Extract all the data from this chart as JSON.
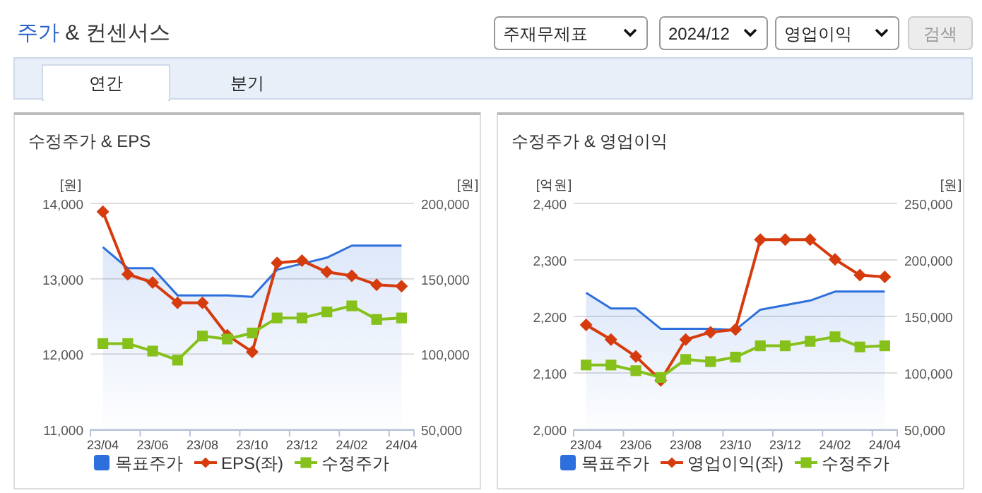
{
  "chart_data": [
    {
      "type": "other",
      "title": "주가 & 컨센서스",
      "annotations": [
        "주재무제표",
        "2024/12",
        "영업이익",
        "검색",
        "연간",
        "분기"
      ]
    },
    {
      "type": "line",
      "title": "수정주가 & EPS",
      "ylabel": "[원]",
      "y2label": "[원]",
      "categories": [
        "23/04",
        null,
        "23/06",
        null,
        "23/08",
        null,
        "23/10",
        null,
        "23/12",
        null,
        "24/02",
        null,
        "24/04"
      ],
      "ylim": [
        11000,
        14000
      ],
      "yticks": [
        {
          "value": 11000,
          "label": "11,000"
        },
        {
          "value": 12000,
          "label": "12,000"
        },
        {
          "value": 13000,
          "label": "13,000"
        },
        {
          "value": 14000,
          "label": "14,000"
        }
      ],
      "y2lim": [
        50000,
        200000
      ],
      "y2ticks": [
        {
          "value": 50000,
          "label": "50,000"
        },
        {
          "value": 100000,
          "label": "100,000"
        },
        {
          "value": 150000,
          "label": "150,000"
        },
        {
          "value": 200000,
          "label": "200,000"
        }
      ],
      "grid": "y",
      "legend": "bottom",
      "series": [
        {
          "name": "목표주가",
          "type": "area",
          "axis": "y2",
          "color": "#2d6fdc",
          "marker": "none",
          "values": [
            171000,
            157000,
            157000,
            139000,
            139000,
            139000,
            138000,
            156000,
            160000,
            164000,
            172000,
            172000,
            172000
          ]
        },
        {
          "name": "EPS(좌)",
          "type": "line",
          "axis": "y",
          "color": "#d63b0e",
          "marker": "diamond",
          "values": [
            13890,
            13060,
            12950,
            12680,
            12680,
            12250,
            12030,
            13210,
            13240,
            13090,
            13040,
            12920,
            12900
          ]
        },
        {
          "name": "수정주가",
          "type": "line",
          "axis": "y2",
          "color": "#86c11b",
          "marker": "square",
          "values": [
            107000,
            107000,
            102000,
            96000,
            112000,
            110000,
            114000,
            124000,
            124000,
            128000,
            132000,
            123000,
            124000
          ]
        }
      ]
    },
    {
      "type": "line",
      "title": "수정주가 & 영업이익",
      "ylabel": "[억원]",
      "y2label": "[원]",
      "categories": [
        "23/04",
        null,
        "23/06",
        null,
        "23/08",
        null,
        "23/10",
        null,
        "23/12",
        null,
        "24/02",
        null,
        "24/04"
      ],
      "ylim": [
        2000,
        2400
      ],
      "yticks": [
        {
          "value": 2000,
          "label": "2,000"
        },
        {
          "value": 2100,
          "label": "2,100"
        },
        {
          "value": 2200,
          "label": "2,200"
        },
        {
          "value": 2300,
          "label": "2,300"
        },
        {
          "value": 2400,
          "label": "2,400"
        }
      ],
      "y2lim": [
        50000,
        250000
      ],
      "y2ticks": [
        {
          "value": 50000,
          "label": "50,000"
        },
        {
          "value": 100000,
          "label": "100,000"
        },
        {
          "value": 150000,
          "label": "150,000"
        },
        {
          "value": 200000,
          "label": "200,000"
        },
        {
          "value": 250000,
          "label": "250,000"
        }
      ],
      "grid": "y",
      "legend": "bottom",
      "series": [
        {
          "name": "목표주가",
          "type": "area",
          "axis": "y2",
          "color": "#2d6fdc",
          "marker": "none",
          "values": [
            171000,
            157000,
            157000,
            139000,
            139000,
            139000,
            138000,
            156000,
            160000,
            164000,
            172000,
            172000,
            172000
          ]
        },
        {
          "name": "영업이익(좌)",
          "type": "line",
          "axis": "y",
          "color": "#d63b0e",
          "marker": "diamond",
          "values": [
            2185,
            2159,
            2129,
            2087,
            2159,
            2172,
            2177,
            2336,
            2336,
            2336,
            2301,
            2273,
            2270
          ]
        },
        {
          "name": "수정주가",
          "type": "line",
          "axis": "y2",
          "color": "#86c11b",
          "marker": "square",
          "values": [
            107000,
            107000,
            102000,
            96000,
            112000,
            110000,
            114000,
            124000,
            124000,
            128000,
            132000,
            123000,
            124000
          ]
        }
      ]
    }
  ]
}
